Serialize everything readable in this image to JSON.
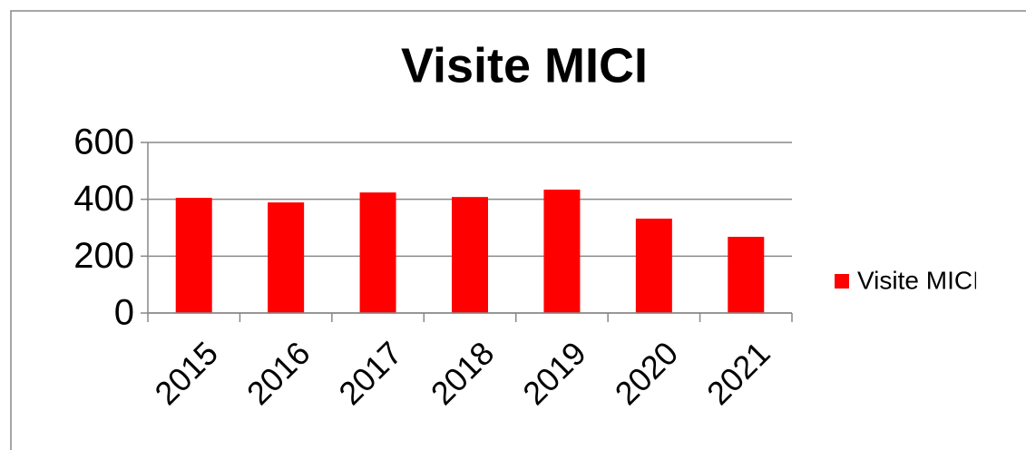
{
  "chart_data": {
    "type": "bar",
    "title": "Visite MICI",
    "categories": [
      "2015",
      "2016",
      "2017",
      "2018",
      "2019",
      "2020",
      "2021"
    ],
    "series": [
      {
        "name": "Visite MICI",
        "color": "#ff0000",
        "values": [
          405,
          389,
          424,
          408,
          434,
          332,
          268
        ]
      }
    ],
    "ylim": [
      0,
      600
    ],
    "yticks": [
      0,
      200,
      400,
      600
    ],
    "grid": true,
    "legend": "right"
  }
}
